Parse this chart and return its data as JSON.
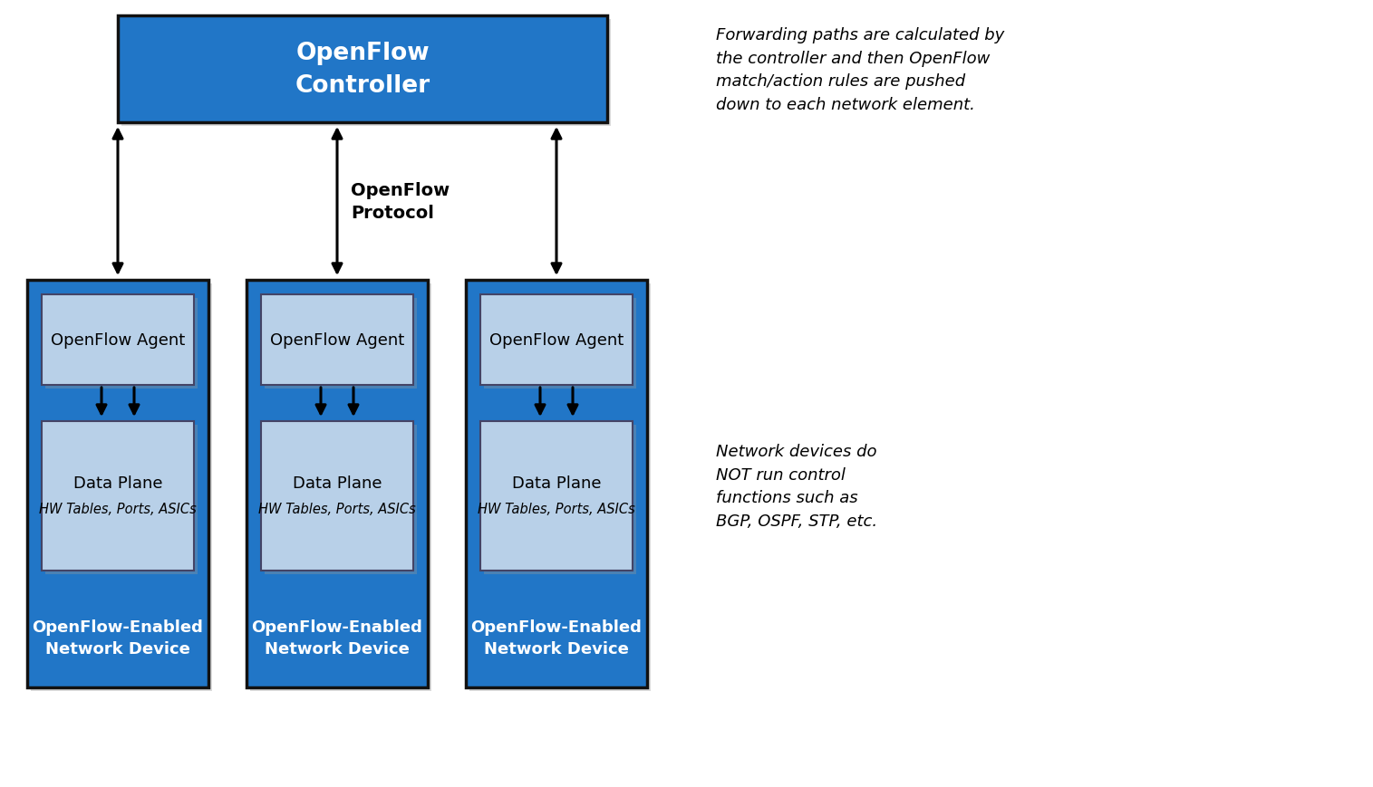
{
  "bg_color": "#ffffff",
  "dark_blue": "#2176c7",
  "medium_blue": "#2176c7",
  "light_blue": "#b8d0e8",
  "box_border_dark": "#111111",
  "box_border_light": "#444466",
  "controller_text": "OpenFlow\nController",
  "agent_text": "OpenFlow Agent",
  "data_plane_text": "Data Plane",
  "data_plane_sub": "HW Tables, Ports, ASICs",
  "device_label": "OpenFlow-Enabled\nNetwork Device",
  "openflow_protocol_label": "OpenFlow\nProtocol",
  "right_text1": "Forwarding paths are calculated by\nthe controller and then OpenFlow\nmatch/action rules are pushed\ndown to each network element.",
  "right_text2": "Network devices do\nNOT run control\nfunctions such as\nBGP, OSPF, STP, etc.",
  "figsize": [
    15.15,
    8.7
  ],
  "dpi": 100
}
